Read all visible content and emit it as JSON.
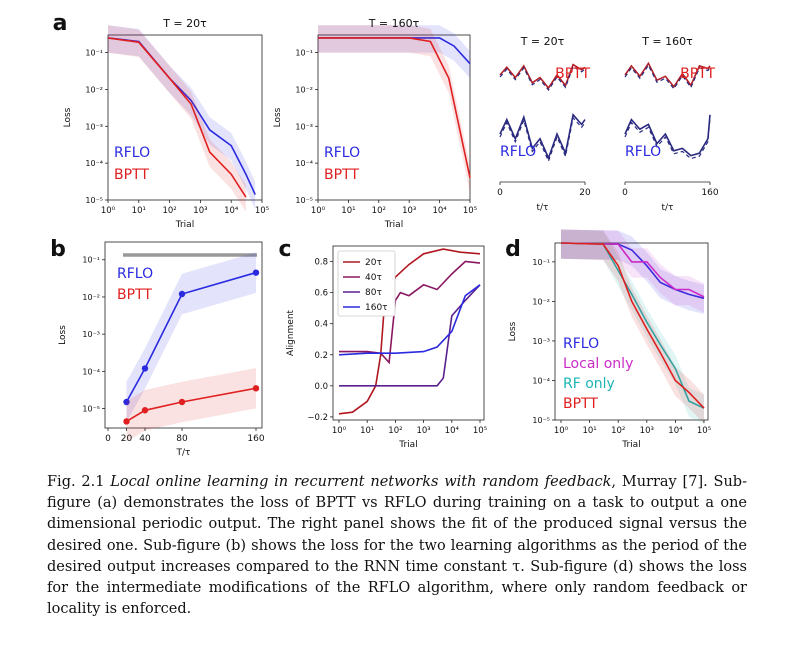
{
  "colors": {
    "rflo": "#2a2ae0",
    "bptt": "#e02020",
    "local": "#cc2bc8",
    "rf": "#1eb5b5",
    "target": "#b02028",
    "trace": "#2a2a80",
    "gray": "#999999"
  },
  "panels": {
    "a": {
      "letter": "a",
      "left_title": "T = 20τ",
      "mid_title": "T = 160τ",
      "right_title_1": "T = 20τ",
      "right_title_2": "T = 160τ",
      "right_xlabel": "t/τ",
      "right_ticks_1": [
        "0",
        "20"
      ],
      "right_ticks_2": [
        "0",
        "160"
      ],
      "label_bptt": "BPTT",
      "label_rflo": "RFLO"
    },
    "b": {
      "letter": "b"
    },
    "c": {
      "letter": "c"
    },
    "d": {
      "letter": "d"
    }
  },
  "chart_data": [
    {
      "id": "a1",
      "type": "line",
      "title": "T = 20τ",
      "xlabel": "Trial",
      "ylabel": "Loss",
      "x_scale": "log",
      "y_scale": "log",
      "xlim": [
        1,
        100000
      ],
      "ylim": [
        1e-05,
        0.3
      ],
      "xticks": [
        "10⁰",
        "10¹",
        "10²",
        "10³",
        "10⁴",
        "10⁵"
      ],
      "yticks": [
        "10⁻¹",
        "10⁻²",
        "10⁻³",
        "10⁻⁴",
        "10⁻⁵"
      ],
      "legend": [
        "RFLO",
        "BPTT"
      ],
      "legend_position": "bottom-left",
      "series": [
        {
          "name": "RFLO",
          "x": [
            1,
            10,
            100,
            500,
            2000,
            10000,
            30000,
            60000
          ],
          "y": [
            0.25,
            0.2,
            0.02,
            0.005,
            0.0008,
            0.0003,
            5e-05,
            1.4e-05
          ]
        },
        {
          "name": "BPTT",
          "x": [
            1,
            10,
            100,
            500,
            2000,
            10000,
            30000
          ],
          "y": [
            0.25,
            0.19,
            0.02,
            0.004,
            0.0002,
            5e-05,
            1.2e-05
          ]
        }
      ]
    },
    {
      "id": "a2",
      "type": "line",
      "title": "T = 160τ",
      "xlabel": "Trial",
      "ylabel": "Loss",
      "x_scale": "log",
      "y_scale": "log",
      "xlim": [
        1,
        100000
      ],
      "ylim": [
        1e-05,
        0.3
      ],
      "xticks": [
        "10⁰",
        "10¹",
        "10²",
        "10³",
        "10⁴",
        "10⁵"
      ],
      "yticks": [
        "10⁻¹",
        "10⁻²",
        "10⁻³",
        "10⁻⁴",
        "10⁻⁵"
      ],
      "legend": [
        "RFLO",
        "BPTT"
      ],
      "legend_position": "bottom-left",
      "series": [
        {
          "name": "RFLO",
          "x": [
            1,
            10,
            100,
            1000,
            10000,
            30000,
            100000
          ],
          "y": [
            0.25,
            0.25,
            0.25,
            0.25,
            0.25,
            0.15,
            0.05
          ]
        },
        {
          "name": "BPTT",
          "x": [
            1,
            10,
            100,
            1000,
            5000,
            20000,
            100000
          ],
          "y": [
            0.25,
            0.25,
            0.25,
            0.25,
            0.2,
            0.02,
            4e-05
          ]
        }
      ]
    },
    {
      "id": "a3",
      "type": "line",
      "title": "T = 20τ",
      "xlabel": "t/τ",
      "x_scale": "linear",
      "xlim": [
        0,
        20
      ],
      "xticks": [
        "0",
        "20"
      ],
      "labels": [
        "BPTT",
        "RFLO"
      ],
      "series": [
        {
          "name": "BPTT",
          "x": [
            0,
            1.6,
            3.6,
            5.6,
            7.6,
            9.4,
            11.4,
            13.4,
            15.4,
            17.2,
            19.2,
            20
          ],
          "y": [
            0.5,
            0.8,
            0.4,
            0.85,
            0.2,
            0.4,
            0.0,
            0.5,
            0.1,
            0.9,
            0.7,
            0.8
          ]
        },
        {
          "name": "RFLO",
          "x": [
            0,
            1.6,
            3.6,
            5.6,
            7.6,
            9.4,
            11.4,
            13.4,
            15.4,
            17.2,
            19.2,
            20
          ],
          "y": [
            0.5,
            0.8,
            0.4,
            0.85,
            0.2,
            0.4,
            0.0,
            0.5,
            0.1,
            0.9,
            0.7,
            0.8
          ]
        }
      ]
    },
    {
      "id": "a4",
      "type": "line",
      "title": "T = 160τ",
      "xlabel": "t/τ",
      "x_scale": "linear",
      "xlim": [
        0,
        160
      ],
      "xticks": [
        "0",
        "160"
      ],
      "labels": [
        "BPTT",
        "RFLO"
      ],
      "series": [
        {
          "name": "BPTT",
          "x": [
            0,
            12,
            28,
            44,
            60,
            76,
            92,
            108,
            124,
            140,
            156,
            160
          ],
          "y": [
            0.5,
            0.85,
            0.45,
            0.95,
            0.3,
            0.45,
            0.05,
            0.55,
            0.1,
            0.85,
            0.75,
            0.85
          ]
        },
        {
          "name": "RFLO",
          "x": [
            0,
            12,
            28,
            44,
            60,
            76,
            92,
            108,
            124,
            140,
            156,
            160
          ],
          "y": [
            0.5,
            0.8,
            0.6,
            0.7,
            0.3,
            0.5,
            0.15,
            0.2,
            0.05,
            0.1,
            0.4,
            0.9
          ]
        }
      ]
    },
    {
      "id": "b",
      "type": "line",
      "xlabel": "T/τ",
      "ylabel": "Loss",
      "x_scale": "linear",
      "y_scale": "log",
      "xlim": [
        0,
        160
      ],
      "ylim": [
        3e-06,
        0.3
      ],
      "xticks": [
        "0",
        "20",
        "40",
        "80",
        "160"
      ],
      "yticks": [
        "10⁻¹",
        "10⁻²",
        "10⁻³",
        "10⁻⁴",
        "10⁻⁵"
      ],
      "legend": [
        "RFLO",
        "BPTT"
      ],
      "legend_position": "top-left",
      "series": [
        {
          "name": "RFLO",
          "x": [
            20,
            40,
            80,
            160
          ],
          "y": [
            1.5e-05,
            0.00012,
            0.012,
            0.045
          ]
        },
        {
          "name": "BPTT",
          "x": [
            20,
            40,
            80,
            160
          ],
          "y": [
            4.5e-06,
            9e-06,
            1.5e-05,
            3.5e-05
          ]
        }
      ]
    },
    {
      "id": "c",
      "type": "line",
      "xlabel": "Trial",
      "ylabel": "Alignment",
      "x_scale": "log",
      "y_scale": "linear",
      "xlim": [
        1,
        100000
      ],
      "ylim": [
        -0.22,
        0.9
      ],
      "xticks": [
        "10⁰",
        "10¹",
        "10²",
        "10³",
        "10⁴",
        "10⁵"
      ],
      "yticks": [
        "0.8",
        "0.6",
        "0.4",
        "0.2",
        "0.0",
        "−0.2"
      ],
      "legend": [
        "20τ",
        "40τ",
        "80τ",
        "160τ"
      ],
      "legend_position": "top-left",
      "series": [
        {
          "name": "20τ",
          "x": [
            1,
            3,
            10,
            20,
            30,
            40,
            100,
            300,
            1000,
            5000,
            20000,
            100000
          ],
          "y": [
            -0.18,
            -0.17,
            -0.1,
            0.0,
            0.2,
            0.5,
            0.7,
            0.78,
            0.85,
            0.88,
            0.86,
            0.85
          ]
        },
        {
          "name": "40τ",
          "x": [
            1,
            10,
            30,
            60,
            100,
            150,
            300,
            1000,
            3000,
            10000,
            30000,
            100000
          ],
          "y": [
            0.22,
            0.22,
            0.21,
            0.15,
            0.55,
            0.6,
            0.58,
            0.65,
            0.62,
            0.72,
            0.8,
            0.79
          ]
        },
        {
          "name": "80τ",
          "x": [
            1,
            10,
            100,
            1000,
            3000,
            5000,
            10000,
            30000,
            100000
          ],
          "y": [
            0.0,
            0.0,
            0.0,
            0.0,
            0.0,
            0.05,
            0.45,
            0.55,
            0.65
          ]
        },
        {
          "name": "160τ",
          "x": [
            1,
            10,
            100,
            1000,
            3000,
            10000,
            30000,
            60000,
            100000
          ],
          "y": [
            0.2,
            0.21,
            0.21,
            0.22,
            0.25,
            0.35,
            0.58,
            0.62,
            0.65
          ]
        }
      ]
    },
    {
      "id": "d",
      "type": "line",
      "xlabel": "Trial",
      "ylabel": "Loss",
      "x_scale": "log",
      "y_scale": "log",
      "xlim": [
        1,
        100000
      ],
      "ylim": [
        1e-05,
        0.3
      ],
      "xticks": [
        "10⁰",
        "10¹",
        "10²",
        "10³",
        "10⁴",
        "10⁵"
      ],
      "yticks": [
        "10⁻¹",
        "10⁻²",
        "10⁻³",
        "10⁻⁴",
        "10⁻⁵"
      ],
      "legend": [
        "RFLO",
        "Local only",
        "RF only",
        "BPTT"
      ],
      "legend_position": "bottom-left",
      "series": [
        {
          "name": "RFLO",
          "x": [
            1,
            100,
            300,
            1000,
            3000,
            10000,
            30000,
            100000
          ],
          "y": [
            0.3,
            0.28,
            0.2,
            0.08,
            0.03,
            0.02,
            0.015,
            0.012
          ]
        },
        {
          "name": "Local only",
          "x": [
            1,
            100,
            300,
            1000,
            3000,
            10000,
            30000,
            100000
          ],
          "y": [
            0.3,
            0.28,
            0.1,
            0.1,
            0.04,
            0.02,
            0.02,
            0.013
          ]
        },
        {
          "name": "RF only",
          "x": [
            1,
            30,
            100,
            300,
            1000,
            3000,
            10000,
            30000,
            100000
          ],
          "y": [
            0.3,
            0.28,
            0.06,
            0.015,
            0.003,
            0.0008,
            0.0002,
            3e-05,
            2e-05
          ]
        },
        {
          "name": "BPTT",
          "x": [
            1,
            30,
            100,
            300,
            1000,
            3000,
            10000,
            30000,
            100000
          ],
          "y": [
            0.3,
            0.28,
            0.08,
            0.01,
            0.002,
            0.0005,
            0.0001,
            5e-05,
            2e-05
          ]
        }
      ]
    }
  ],
  "caption": {
    "prefix": "Fig. 2.1 ",
    "title": "Local online learning in recurrent networks with random feedback",
    "body": ", Murray [7]. Sub-figure (a) demonstrates the loss of BPTT vs RFLO during training on a task to output a one dimensional periodic output. The right panel shows the fit of the produced signal versus the desired one. Sub-figure (b) shows the loss for the two learning algorithms as the period of the desired output increases compared to the RNN time constant τ. Sub-figure (d) shows the loss for the intermediate modifications of the RFLO algorithm, where only random feedback or locality is enforced."
  }
}
